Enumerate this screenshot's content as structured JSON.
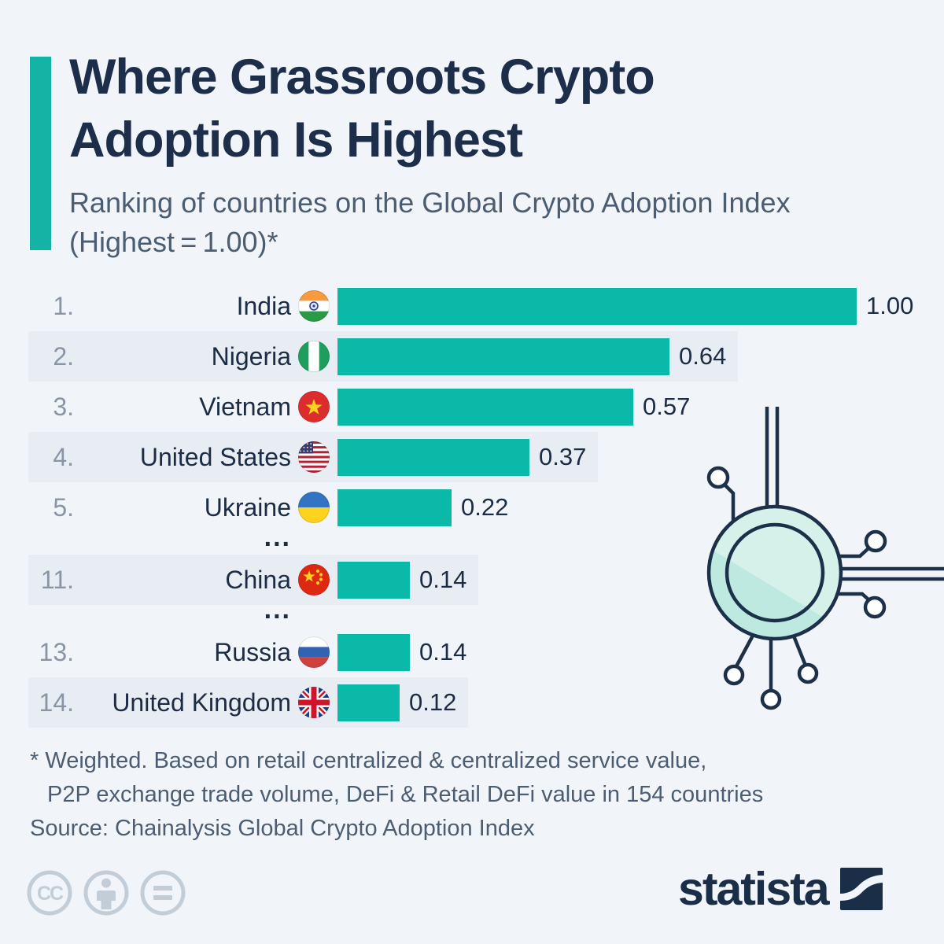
{
  "title": {
    "line1": "Where Grassroots Crypto",
    "line2": "Adoption Is Highest"
  },
  "subtitle": {
    "line1": "Ranking of countries on the Global Crypto Adoption Index",
    "line2": "(Highest = 1.00)*"
  },
  "chart_data": {
    "type": "bar",
    "orientation": "horizontal",
    "title": "Ranking of countries on the Global Crypto Adoption Index (Highest = 1.00)",
    "value_range": [
      0,
      1.0
    ],
    "rows": [
      {
        "rank": "1.",
        "country": "India",
        "flag": "in",
        "value": 1.0,
        "label": "1.00",
        "striped": false
      },
      {
        "rank": "2.",
        "country": "Nigeria",
        "flag": "ng",
        "value": 0.64,
        "label": "0.64",
        "striped": true
      },
      {
        "rank": "3.",
        "country": "Vietnam",
        "flag": "vn",
        "value": 0.57,
        "label": "0.57",
        "striped": false
      },
      {
        "rank": "4.",
        "country": "United States",
        "flag": "us",
        "value": 0.37,
        "label": "0.37",
        "striped": true
      },
      {
        "rank": "5.",
        "country": "Ukraine",
        "flag": "ua",
        "value": 0.22,
        "label": "0.22",
        "striped": false
      },
      {
        "gap": true,
        "ellipsis": "..."
      },
      {
        "rank": "11.",
        "country": "China",
        "flag": "cn",
        "value": 0.14,
        "label": "0.14",
        "striped": true
      },
      {
        "gap": true,
        "ellipsis": "..."
      },
      {
        "rank": "13.",
        "country": "Russia",
        "flag": "ru",
        "value": 0.14,
        "label": "0.14",
        "striped": false
      },
      {
        "rank": "14.",
        "country": "United Kingdom",
        "flag": "gb",
        "value": 0.12,
        "label": "0.12",
        "striped": true
      }
    ]
  },
  "footnote": {
    "line1": "* Weighted. Based on retail centralized & centralized service value,",
    "line2": "P2P exchange trade volume, DeFi & Retail DeFi value in 154 countries",
    "source": "Source: Chainalysis Global Crypto Adoption Index"
  },
  "footer": {
    "logo_text": "statista",
    "license_icons": [
      "cc-icon",
      "attribution-icon",
      "equals-icon"
    ]
  },
  "colors": {
    "background": "#f1f5f9",
    "bar": "#0bb9a8",
    "accent": "#14b3a5",
    "navy": "#1c2e4a",
    "stripe": "#e8edf4",
    "rank_gray": "#8995a5",
    "muted_text": "#4b5d72",
    "license_gray": "#c3cdd7",
    "coin_fill_light": "#d6f0ea",
    "coin_fill_dark": "#bde9e0"
  }
}
